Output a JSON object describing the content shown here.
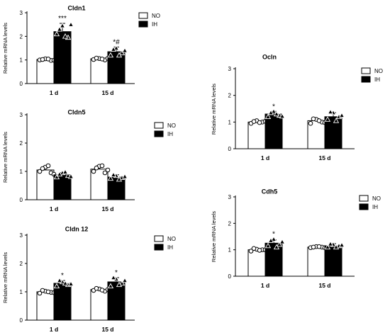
{
  "chart_data": [
    {
      "type": "bar",
      "title": "Cldn1",
      "ylabel": "Relative mRNA levels",
      "xlabel": "",
      "categories": [
        "1 d",
        "15 d"
      ],
      "yticks": [
        0,
        1,
        2,
        3
      ],
      "ylim": [
        0,
        3
      ],
      "grid": false,
      "legend_placement": "top-right",
      "series": [
        {
          "name": "NO",
          "values": [
            1.02,
            1.05
          ],
          "errors": [
            0.05,
            0.05
          ],
          "points": [
            [
              1.0,
              1.05,
              0.98,
              1.02,
              1.04,
              0.99
            ],
            [
              1.02,
              1.06,
              1.0,
              1.08,
              1.04,
              1.07
            ]
          ]
        },
        {
          "name": "IH",
          "values": [
            2.2,
            1.35
          ],
          "errors": [
            0.35,
            0.2
          ],
          "points": [
            [
              2.1,
              2.45,
              1.95,
              2.3,
              2.0,
              2.5
            ],
            [
              1.2,
              1.5,
              1.3,
              1.45,
              1.2,
              1.4
            ]
          ]
        }
      ],
      "annotations": [
        {
          "category": "1 d",
          "series": "IH",
          "text": "***"
        },
        {
          "category": "15 d",
          "series": "IH",
          "text": "*#"
        }
      ]
    },
    {
      "type": "bar",
      "title": "Cldn5",
      "ylabel": "Relative mRNA levels",
      "xlabel": "",
      "categories": [
        "1 d",
        "15 d"
      ],
      "yticks": [
        0,
        1,
        2,
        3
      ],
      "ylim": [
        0,
        3
      ],
      "grid": false,
      "legend_placement": "top-right",
      "series": [
        {
          "name": "NO",
          "values": [
            1.05,
            1.08
          ],
          "errors": [
            0.1,
            0.12
          ],
          "points": [
            [
              1.0,
              1.15,
              0.95,
              1.1,
              1.2,
              0.9
            ],
            [
              1.0,
              1.18,
              0.95,
              1.12,
              1.2,
              1.05
            ]
          ]
        },
        {
          "name": "IH",
          "values": [
            0.88,
            0.8
          ],
          "errors": [
            0.08,
            0.08
          ],
          "points": [
            [
              0.8,
              0.95,
              0.85,
              0.9,
              0.98,
              0.82
            ],
            [
              0.75,
              0.85,
              0.78,
              0.88,
              0.72,
              0.82
            ]
          ]
        }
      ],
      "annotations": []
    },
    {
      "type": "bar",
      "title": "Cldn 12",
      "ylabel": "Relative mRNA levels",
      "xlabel": "",
      "categories": [
        "1 d",
        "15 d"
      ],
      "yticks": [
        0,
        1,
        2,
        3
      ],
      "ylim": [
        0,
        3
      ],
      "grid": false,
      "legend_placement": "top-right",
      "series": [
        {
          "name": "NO",
          "values": [
            1.0,
            1.08
          ],
          "errors": [
            0.05,
            0.05
          ],
          "points": [
            [
              0.95,
              1.02,
              0.98,
              1.05,
              1.0,
              0.97
            ],
            [
              1.05,
              1.1,
              1.02,
              1.12,
              1.06,
              1.08
            ]
          ]
        },
        {
          "name": "IH",
          "values": [
            1.3,
            1.35
          ],
          "errors": [
            0.1,
            0.15
          ],
          "points": [
            [
              1.2,
              1.35,
              1.25,
              1.4,
              1.3,
              1.28
            ],
            [
              1.2,
              1.45,
              1.3,
              1.5,
              1.25,
              1.4
            ]
          ]
        }
      ],
      "annotations": [
        {
          "category": "1 d",
          "series": "IH",
          "text": "*"
        },
        {
          "category": "15 d",
          "series": "IH",
          "text": "*"
        }
      ]
    },
    {
      "type": "bar",
      "title": "Ocln",
      "ylabel": "Relative mRNA levels",
      "xlabel": "",
      "categories": [
        "1 d",
        "15 d"
      ],
      "yticks": [
        0,
        1,
        2,
        3
      ],
      "ylim": [
        0,
        3
      ],
      "grid": false,
      "legend_placement": "top-right",
      "series": [
        {
          "name": "NO",
          "values": [
            1.0,
            1.05
          ],
          "errors": [
            0.05,
            0.08
          ],
          "points": [
            [
              0.95,
              1.05,
              1.0,
              1.02,
              0.98,
              1.03
            ],
            [
              0.95,
              1.1,
              1.0,
              1.12,
              1.05,
              0.98
            ]
          ]
        },
        {
          "name": "IH",
          "values": [
            1.3,
            1.2
          ],
          "errors": [
            0.1,
            0.15
          ],
          "points": [
            [
              1.2,
              1.4,
              1.25,
              1.35,
              1.3,
              1.22
            ],
            [
              1.1,
              1.35,
              1.2,
              1.38,
              1.05,
              1.25
            ]
          ]
        }
      ],
      "annotations": [
        {
          "category": "1 d",
          "series": "IH",
          "text": "*"
        }
      ]
    },
    {
      "type": "bar",
      "title": "Cdh5",
      "ylabel": "Relative mRNA levels",
      "xlabel": "",
      "categories": [
        "1 d",
        "15 d"
      ],
      "yticks": [
        0,
        1,
        2,
        3
      ],
      "ylim": [
        0,
        3
      ],
      "grid": false,
      "legend_placement": "top-right",
      "series": [
        {
          "name": "NO",
          "values": [
            1.0,
            1.1
          ],
          "errors": [
            0.05,
            0.05
          ],
          "points": [
            [
              0.95,
              1.02,
              1.0,
              1.05,
              0.98,
              1.0
            ],
            [
              1.08,
              1.12,
              1.1,
              1.1,
              1.12,
              1.08
            ]
          ]
        },
        {
          "name": "IH",
          "values": [
            1.25,
            1.15
          ],
          "errors": [
            0.12,
            0.08
          ],
          "points": [
            [
              1.15,
              1.4,
              1.2,
              1.35,
              1.1,
              1.3
            ],
            [
              1.1,
              1.2,
              1.15,
              1.22,
              1.1,
              1.18
            ]
          ]
        }
      ],
      "annotations": [
        {
          "category": "1 d",
          "series": "IH",
          "text": "*"
        }
      ]
    }
  ]
}
